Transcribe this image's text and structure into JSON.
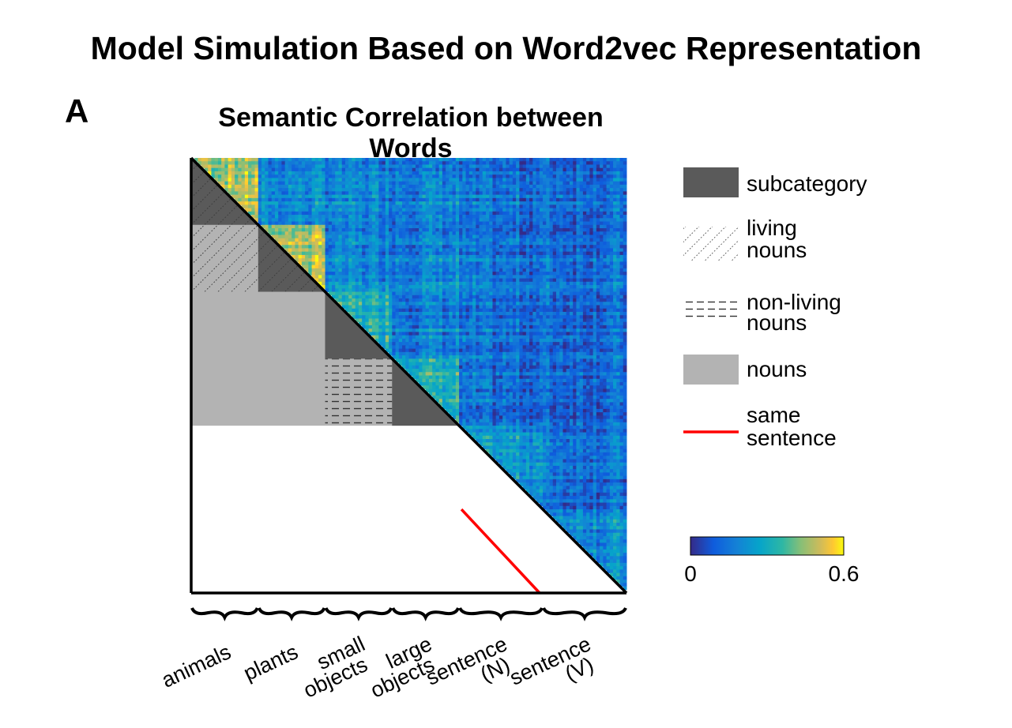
{
  "figure": {
    "title": "Model Simulation Based on Word2vec Representation",
    "panel_label": "A"
  },
  "chart_data": {
    "type": "heatmap",
    "title": "Semantic Correlation between Words",
    "categories": [
      {
        "label": "animals",
        "count": 20
      },
      {
        "label": "plants",
        "count": 20
      },
      {
        "label": "small objects",
        "count": 20
      },
      {
        "label": "large objects",
        "count": 20
      },
      {
        "label": "sentence (N)",
        "count": 25
      },
      {
        "label": "sentence (V)",
        "count": 25
      }
    ],
    "upper_triangle": "correlation matrix",
    "lower_triangle_regions": [
      {
        "name": "subcategory",
        "blocks": [
          "animals",
          "plants",
          "small objects",
          "large objects"
        ]
      },
      {
        "name": "living nouns",
        "blocks": [
          "animals x plants"
        ]
      },
      {
        "name": "non-living nouns",
        "blocks": [
          "small objects x large objects"
        ]
      },
      {
        "name": "nouns",
        "blocks": [
          "living x non-living"
        ]
      },
      {
        "name": "same sentence",
        "blocks": [
          "sentence (N) x sentence (V)"
        ]
      }
    ],
    "colorbar": {
      "min": 0,
      "max": 0.6,
      "min_label": "0",
      "max_label": "0.6",
      "colormap": "parula"
    },
    "legend": {
      "placement": "right",
      "items": [
        {
          "label": "subcategory",
          "style": "dark-fill",
          "color": "#5a5a5a"
        },
        {
          "label": "living nouns",
          "style": "diagonal-dots"
        },
        {
          "label": "non-living nouns",
          "style": "horizontal-dashes"
        },
        {
          "label": "nouns",
          "style": "light-fill",
          "color": "#b3b3b3"
        },
        {
          "label": "same sentence",
          "style": "red-line",
          "color": "#ff0000"
        }
      ]
    },
    "x_labels": [
      {
        "lines": [
          "animals"
        ]
      },
      {
        "lines": [
          "plants"
        ]
      },
      {
        "lines": [
          "small",
          "objects"
        ]
      },
      {
        "lines": [
          "large",
          "objects"
        ]
      },
      {
        "lines": [
          "sentence",
          "(N)"
        ]
      },
      {
        "lines": [
          "sentence",
          "(V)"
        ]
      }
    ]
  }
}
